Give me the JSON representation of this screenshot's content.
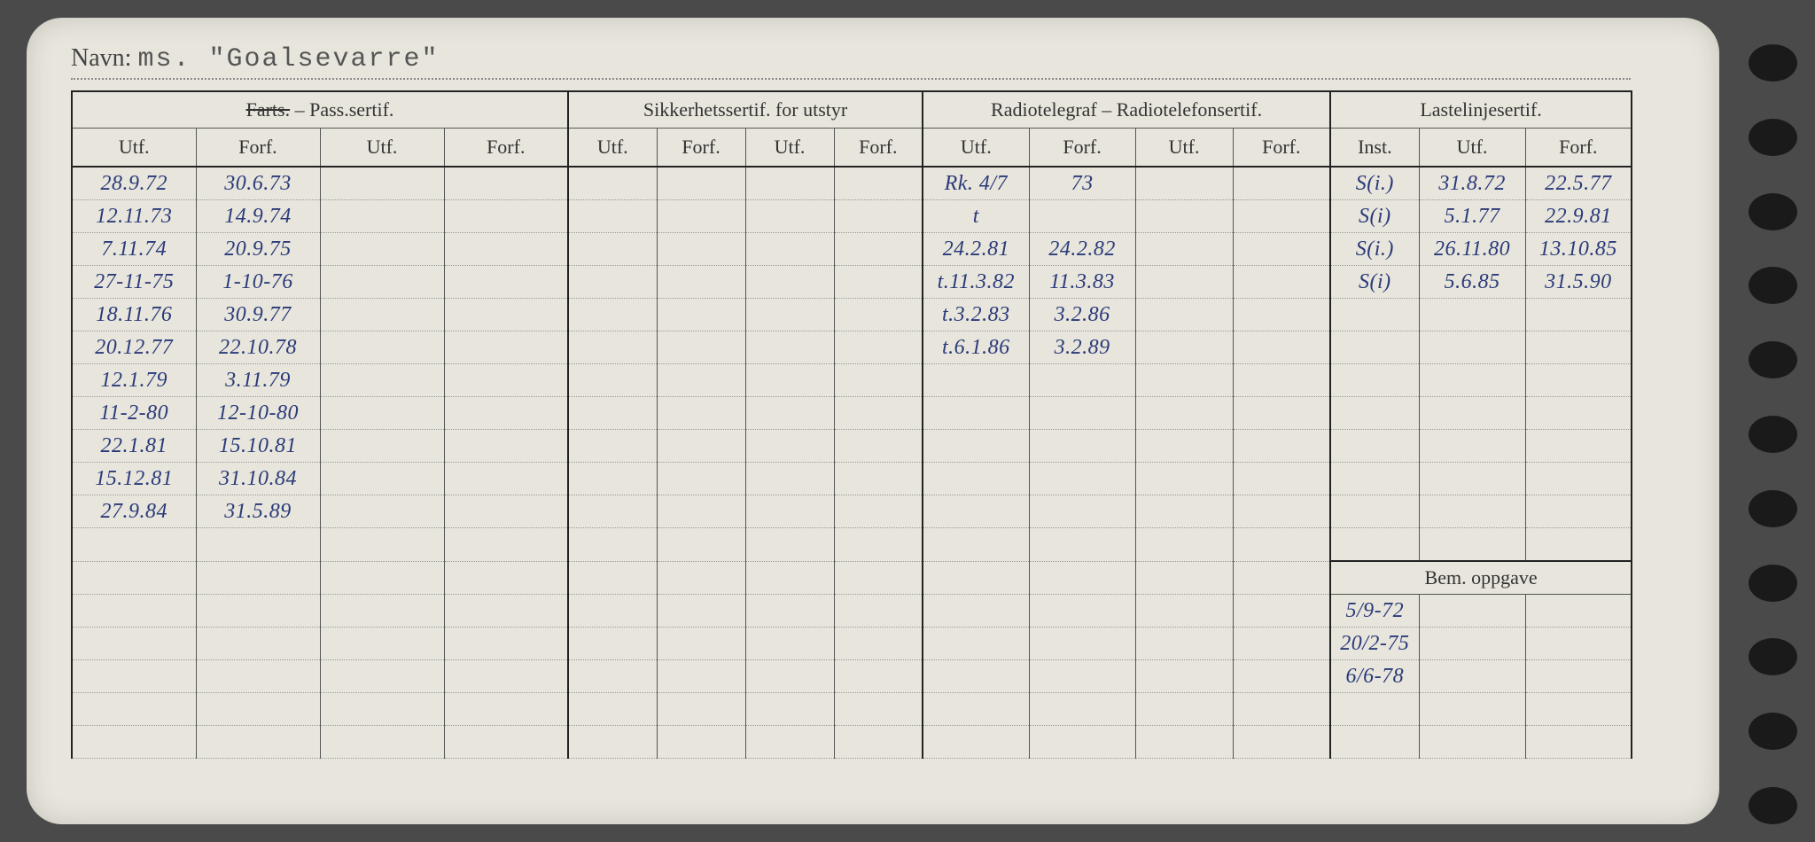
{
  "name_label": "Navn:",
  "name_value": "ms. \"Goalsevarre\"",
  "groups": {
    "g1": "Farts. – Pass.sertif.",
    "g1_strike": "Farts.",
    "g2": "Sikkerhetssertif. for utstyr",
    "g3": "Radiotelegraf – Radiotelefonsertif.",
    "g4": "Lastelinjesertif."
  },
  "sub": {
    "utf": "Utf.",
    "forf": "Forf.",
    "inst": "Inst."
  },
  "bem_label": "Bem. oppgave",
  "col1": {
    "utf": [
      "28.9.72",
      "12.11.73",
      "7.11.74",
      "27-11-75",
      "18.11.76",
      "20.12.77",
      "12.1.79",
      "11-2-80",
      "22.1.81",
      "15.12.81",
      "27.9.84"
    ],
    "forf": [
      "30.6.73",
      "14.9.74",
      "20.9.75",
      "1-10-76",
      "30.9.77",
      "22.10.78",
      "3.11.79",
      "12-10-80",
      "15.10.81",
      "31.10.84",
      "31.5.89"
    ]
  },
  "col3": {
    "utf": [
      "Rk. 4/7",
      "t",
      "24.2.81",
      "t.11.3.82",
      "t.3.2.83",
      "t.6.1.86"
    ],
    "forf": [
      "73",
      "",
      "24.2.82",
      "11.3.83",
      "3.2.86",
      "3.2.89"
    ]
  },
  "col4": {
    "inst": [
      "S(i.)",
      "S(i)",
      "S(i.)",
      "S(i)"
    ],
    "utf": [
      "31.8.72",
      "5.1.77",
      "26.11.80",
      "5.6.85"
    ],
    "forf": [
      "22.5.77",
      "22.9.81",
      "13.10.85",
      "31.5.90"
    ]
  },
  "bem": [
    "5/9-72",
    "20/2-75",
    "6/6-78"
  ]
}
